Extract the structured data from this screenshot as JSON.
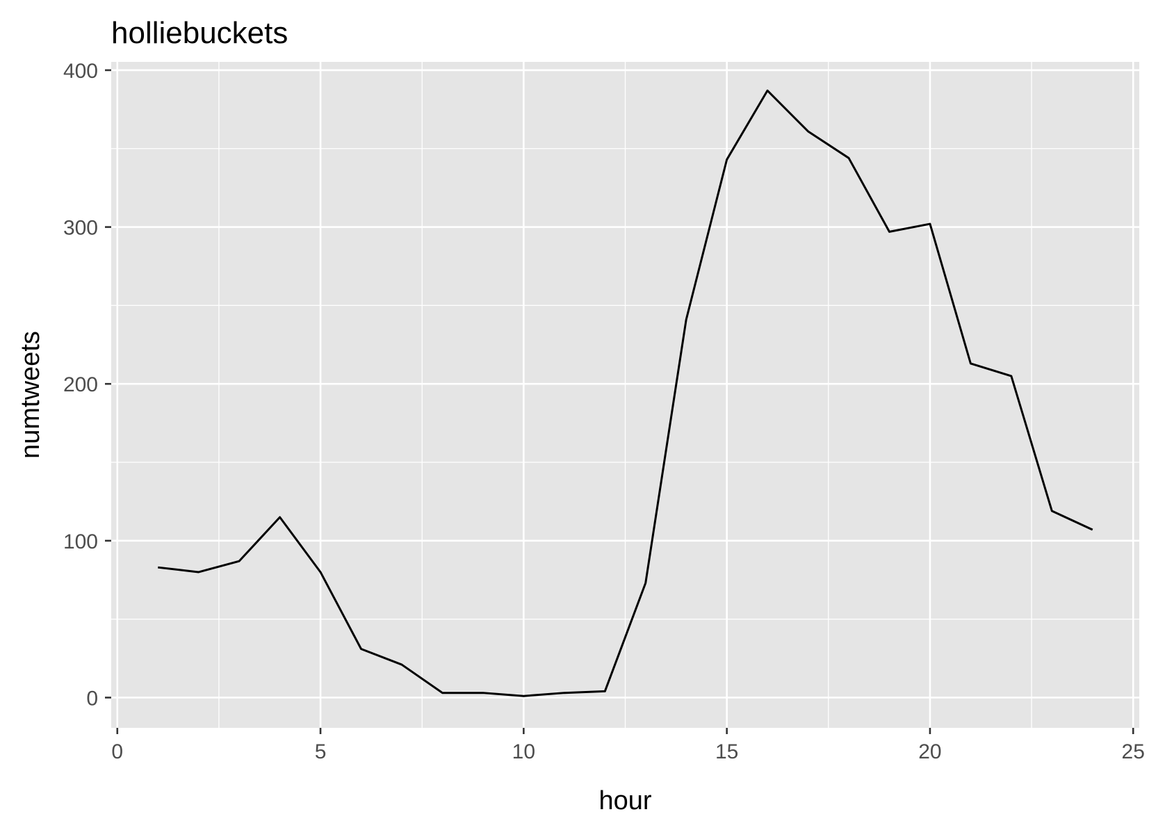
{
  "colors": {
    "panel_background": "#e5e5e5",
    "grid": "#ffffff",
    "line": "#000000",
    "tick_label": "#4d4d4d",
    "tick_mark": "#333333"
  },
  "chart_data": {
    "type": "line",
    "title": "holliebuckets",
    "xlabel": "hour",
    "ylabel": "numtweets",
    "xlim": [
      -0.15,
      25.15
    ],
    "ylim": [
      -19.3,
      405.3
    ],
    "xticks": [
      0,
      5,
      10,
      15,
      20,
      25
    ],
    "yticks": [
      0,
      100,
      200,
      300,
      400
    ],
    "xtick_labels": [
      "0",
      "5",
      "10",
      "15",
      "20",
      "25"
    ],
    "ytick_labels": [
      "0",
      "100",
      "200",
      "300",
      "400"
    ],
    "grid": true,
    "x": [
      1,
      2,
      3,
      4,
      5,
      6,
      7,
      8,
      9,
      10,
      11,
      12,
      13,
      14,
      15,
      16,
      17,
      18,
      19,
      20,
      21,
      22,
      23,
      24
    ],
    "series": [
      {
        "values": [
          83,
          80,
          87,
          115,
          80,
          31,
          21,
          3,
          3,
          1,
          3,
          4,
          73,
          241,
          343,
          387,
          361,
          344,
          297,
          302,
          213,
          205,
          119,
          107
        ]
      }
    ]
  }
}
